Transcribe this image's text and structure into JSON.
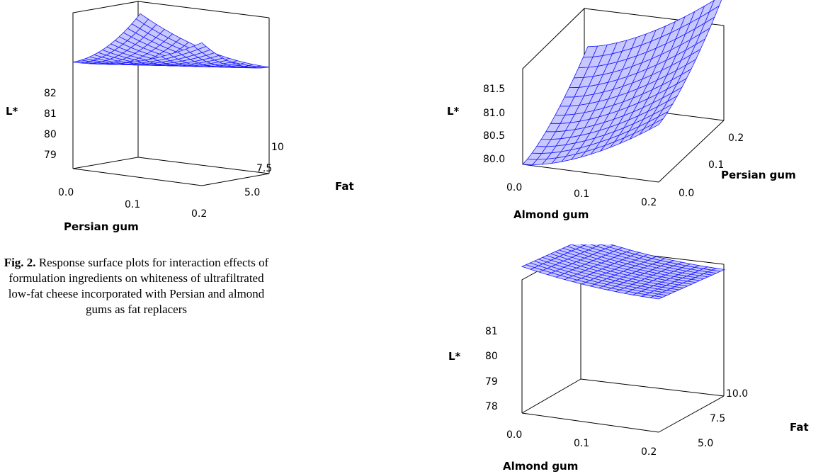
{
  "caption": {
    "figure_label": "Fig. 2.",
    "text": "Response surface plots for interaction effects of formulation ingredients on whiteness of ultrafiltrated low-fat cheese incorporated with Persian and almond gums as fat replacers"
  },
  "colors": {
    "surface": "#1a1aff",
    "axes": "#000000"
  },
  "chart_data": [
    {
      "type": "surface",
      "xlabel": "Persian gum",
      "ylabel": "Fat",
      "zlabel": "L*",
      "x_ticks": [
        "0.0",
        "0.1",
        "0.2"
      ],
      "y_ticks": [
        "5.0",
        "7.5",
        "10.0"
      ],
      "z_ticks": [
        "79",
        "80",
        "81",
        "82"
      ],
      "xlim": [
        0,
        0.2
      ],
      "ylim": [
        5,
        10
      ],
      "zlim": [
        79,
        82
      ],
      "z_at_corners": {
        "x0_y5": 81.6,
        "x0.1_y7.5": 81.0,
        "x0.2_y10": 81.6
      }
    },
    {
      "type": "surface",
      "xlabel": "Almond gum",
      "ylabel": "Persian gum",
      "zlabel": "L*",
      "x_ticks": [
        "0.0",
        "0.1",
        "0.2"
      ],
      "y_ticks": [
        "0.0",
        "0.1",
        "0.2"
      ],
      "z_ticks": [
        "80.0",
        "80.5",
        "81.0",
        "81.5"
      ],
      "xlim": [
        0,
        0.2
      ],
      "ylim": [
        0,
        0.2
      ],
      "zlim": [
        80,
        81.5
      ],
      "z_range": [
        80.0,
        81.9
      ]
    },
    {
      "type": "surface",
      "xlabel": "Almond gum",
      "ylabel": "Fat",
      "zlabel": "L*",
      "x_ticks": [
        "0.0",
        "0.1",
        "0.2"
      ],
      "y_ticks": [
        "5.0",
        "7.5",
        "10.0"
      ],
      "z_ticks": [
        "78",
        "79",
        "80",
        "81"
      ],
      "xlim": [
        0,
        0.2
      ],
      "ylim": [
        5,
        10
      ],
      "zlim": [
        78,
        81
      ],
      "z_range": [
        80.6,
        81.3
      ]
    }
  ]
}
